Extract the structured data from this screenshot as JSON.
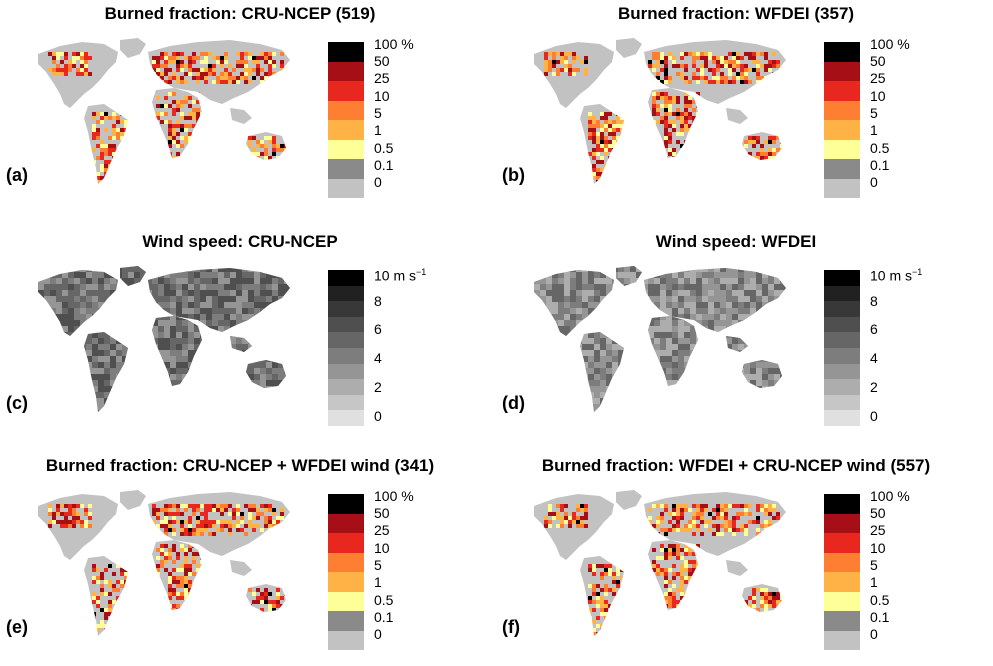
{
  "colors": {
    "fire": [
      "#c2c2c2",
      "#8a8a8a",
      "#ffff99",
      "#ffb347",
      "#ff7f32",
      "#e8281e",
      "#a50f15",
      "#000000"
    ],
    "wind": [
      "#e0e0e0",
      "#c6c6c6",
      "#adadad",
      "#959595",
      "#7d7d7d",
      "#666666",
      "#4f4f4f",
      "#383838",
      "#212121",
      "#000000"
    ]
  },
  "panels": [
    {
      "id": "a",
      "title": "Burned fraction: CRU-NCEP (519)",
      "label": "(a)",
      "type": "fire",
      "legend_labels": [
        "100 %",
        "50",
        "25",
        "10",
        "5",
        "1",
        "0.5",
        "0.1",
        "0"
      ]
    },
    {
      "id": "b",
      "title": "Burned fraction: WFDEI (357)",
      "label": "(b)",
      "type": "fire",
      "legend_labels": [
        "100 %",
        "50",
        "25",
        "10",
        "5",
        "1",
        "0.5",
        "0.1",
        "0"
      ]
    },
    {
      "id": "c",
      "title": "Wind speed: CRU-NCEP",
      "label": "(c)",
      "type": "wind",
      "legend_top": "10 m s",
      "legend_top_exp": "−1",
      "legend_labels": [
        "8",
        "6",
        "4",
        "2",
        "0"
      ]
    },
    {
      "id": "d",
      "title": "Wind speed: WFDEI",
      "label": "(d)",
      "type": "wind",
      "legend_top": "10 m s",
      "legend_top_exp": "−1",
      "legend_labels": [
        "8",
        "6",
        "4",
        "2",
        "0"
      ]
    },
    {
      "id": "e",
      "title": "Burned fraction: CRU-NCEP + WFDEI wind (341)",
      "label": "(e)",
      "type": "fire",
      "legend_labels": [
        "100 %",
        "50",
        "25",
        "10",
        "5",
        "1",
        "0.5",
        "0.1",
        "0"
      ]
    },
    {
      "id": "f",
      "title": "Burned fraction: WFDEI + CRU-NCEP wind (557)",
      "label": "(f)",
      "type": "fire",
      "legend_labels": [
        "100 %",
        "50",
        "25",
        "10",
        "5",
        "1",
        "0.5",
        "0.1",
        "0"
      ]
    }
  ]
}
